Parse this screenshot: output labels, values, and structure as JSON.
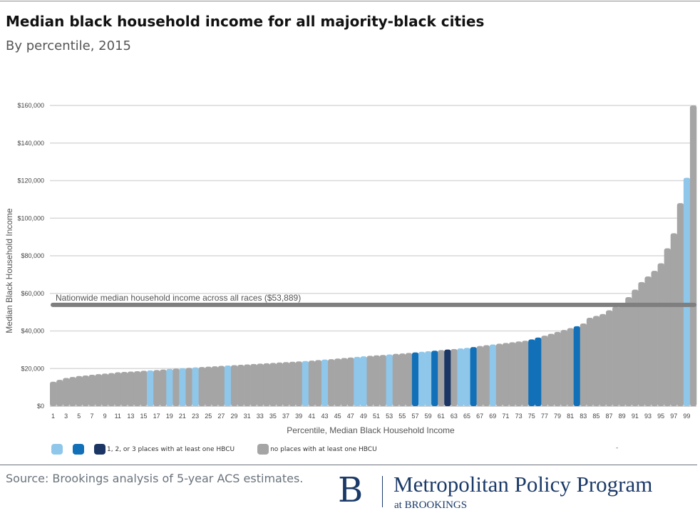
{
  "title": "Median black household income for all majority-black cities",
  "subtitle": "By percentile, 2015",
  "source": "Source: Brookings analysis of 5-year ACS estimates.",
  "logo": {
    "mark": "B",
    "name": "Metropolitan Policy Program",
    "sub": "at BROOKINGS"
  },
  "chart_data": {
    "type": "bar",
    "xlabel": "Percentile, Median  Black Household Income",
    "ylabel": "Median Black Household Income",
    "ylim": [
      0,
      160000
    ],
    "yticks": [
      "$0",
      "$20,000",
      "$40,000",
      "$60,000",
      "$80,000",
      "$100,000",
      "$120,000",
      "$140,000",
      "$160,000"
    ],
    "grid": true,
    "colors": {
      "g": "#a5a5a5",
      "l": "#8fc7ea",
      "m": "#1170b8",
      "d": "#1b3664"
    },
    "categories": [
      1,
      2,
      3,
      4,
      5,
      6,
      7,
      8,
      9,
      10,
      11,
      12,
      13,
      14,
      15,
      16,
      17,
      18,
      19,
      20,
      21,
      22,
      23,
      24,
      25,
      26,
      27,
      28,
      29,
      30,
      31,
      32,
      33,
      34,
      35,
      36,
      37,
      38,
      39,
      40,
      41,
      42,
      43,
      44,
      45,
      46,
      47,
      48,
      49,
      50,
      51,
      52,
      53,
      54,
      55,
      56,
      57,
      58,
      59,
      60,
      61,
      62,
      63,
      64,
      65,
      66,
      67,
      68,
      69,
      70,
      71,
      72,
      73,
      74,
      75,
      76,
      77,
      78,
      79,
      80,
      81,
      82,
      83,
      84,
      85,
      86,
      87,
      88,
      89,
      90,
      91,
      92,
      93,
      94,
      95,
      96,
      97,
      98,
      99,
      100
    ],
    "values": [
      13000,
      14000,
      15000,
      15500,
      16000,
      16300,
      16700,
      17000,
      17300,
      17600,
      18000,
      18200,
      18400,
      18600,
      18800,
      19000,
      19200,
      19500,
      19800,
      20000,
      20200,
      20400,
      20600,
      20800,
      21000,
      21200,
      21400,
      21600,
      21800,
      22000,
      22200,
      22400,
      22600,
      22800,
      23000,
      23200,
      23400,
      23600,
      23800,
      24000,
      24200,
      24500,
      24800,
      25000,
      25300,
      25600,
      25900,
      26200,
      26500,
      26800,
      27000,
      27200,
      27500,
      27800,
      28000,
      28300,
      28600,
      28900,
      29200,
      29500,
      29800,
      30100,
      30400,
      30700,
      31000,
      31400,
      32000,
      32400,
      32800,
      33200,
      33600,
      34000,
      34400,
      34800,
      35500,
      36500,
      37500,
      38500,
      39500,
      40500,
      41500,
      42500,
      44000,
      47000,
      48000,
      49000,
      51000,
      53000,
      55000,
      58000,
      62000,
      66000,
      69000,
      72000,
      76000,
      84000,
      92000,
      108000,
      121500,
      160000
    ],
    "hbcu_class": [
      "g",
      "g",
      "g",
      "g",
      "g",
      "g",
      "g",
      "g",
      "g",
      "g",
      "g",
      "g",
      "g",
      "g",
      "g",
      "l",
      "g",
      "g",
      "l",
      "g",
      "l",
      "g",
      "l",
      "g",
      "g",
      "g",
      "g",
      "l",
      "g",
      "g",
      "g",
      "g",
      "g",
      "g",
      "g",
      "g",
      "g",
      "g",
      "g",
      "l",
      "g",
      "g",
      "l",
      "g",
      "g",
      "g",
      "g",
      "l",
      "l",
      "g",
      "g",
      "g",
      "l",
      "g",
      "g",
      "g",
      "m",
      "l",
      "l",
      "m",
      "g",
      "d",
      "g",
      "l",
      "l",
      "m",
      "g",
      "g",
      "l",
      "g",
      "g",
      "g",
      "g",
      "g",
      "m",
      "m",
      "g",
      "g",
      "g",
      "g",
      "g",
      "m",
      "g",
      "g",
      "g",
      "g",
      "g",
      "g",
      "g",
      "g",
      "g",
      "g",
      "g",
      "g",
      "g",
      "g",
      "g",
      "g",
      "l",
      "g"
    ],
    "reference_line": {
      "value": 53889,
      "label": "Nationwide median household income across all races ($53,889)",
      "color": "#7f7f7f"
    },
    "legend": {
      "placement": "bottom",
      "hbcu_label": "1, 2, or 3 places with at least one HBCU",
      "none_label": "no places with at least one HBCU",
      "stray_mark": "-"
    }
  }
}
